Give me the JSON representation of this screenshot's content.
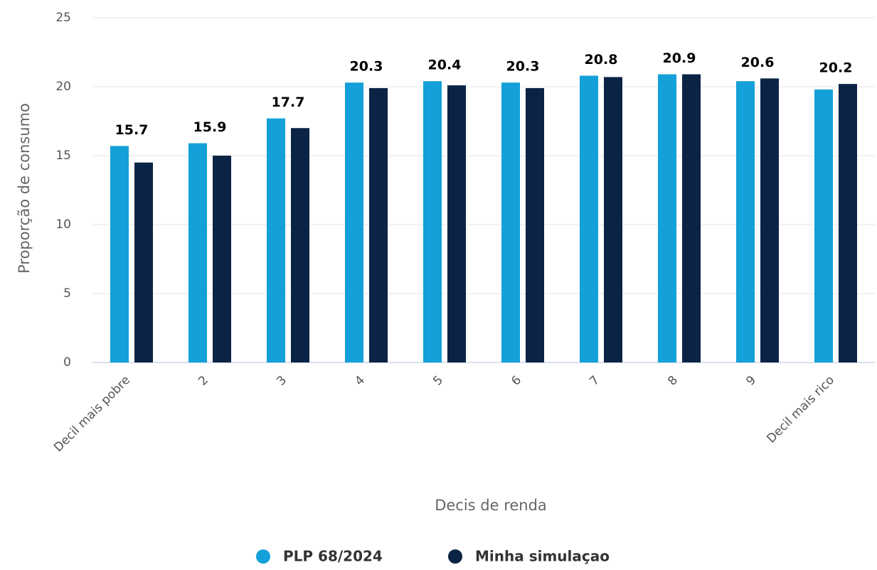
{
  "chart_data": {
    "type": "bar",
    "categories": [
      "Decil mais pobre",
      "2",
      "3",
      "4",
      "5",
      "6",
      "7",
      "8",
      "9",
      "Decil mais rico"
    ],
    "series": [
      {
        "name": "PLP 68/2024",
        "color": "#14a0d8",
        "values": [
          15.7,
          15.9,
          17.7,
          20.3,
          20.4,
          20.3,
          20.8,
          20.9,
          20.4,
          19.8
        ],
        "data_labels": [
          15.7,
          15.9,
          17.7,
          20.3,
          20.4,
          20.3,
          20.8,
          20.9,
          null,
          null
        ]
      },
      {
        "name": "Minha simulaçao",
        "color": "#0b2345",
        "values": [
          14.5,
          15.0,
          17.0,
          19.9,
          20.1,
          19.9,
          20.7,
          20.9,
          20.6,
          20.2
        ],
        "data_labels": [
          null,
          null,
          null,
          null,
          null,
          null,
          null,
          null,
          20.6,
          20.2
        ]
      }
    ],
    "xlabel": "Decis de renda",
    "ylabel": "Proporção de consumo",
    "ylim": [
      0,
      25
    ],
    "yticks": [
      0,
      5,
      10,
      15,
      20,
      25
    ],
    "grid": true,
    "legend": "bottom"
  }
}
